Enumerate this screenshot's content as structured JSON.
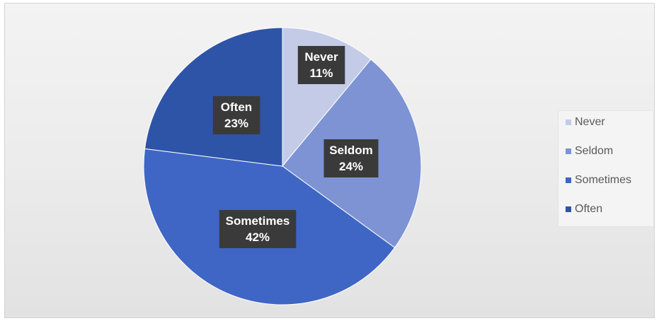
{
  "chart_data": {
    "type": "pie",
    "categories": [
      "Never",
      "Seldom",
      "Sometimes",
      "Often"
    ],
    "values": [
      11,
      24,
      42,
      23
    ],
    "labels": [
      "Never\n11%",
      "Seldom\n24%",
      "Sometimes\n42%",
      "Often\n23%"
    ],
    "colors": [
      "#c3cbe7",
      "#7d93d4",
      "#3f66c4",
      "#2e54a8"
    ],
    "legend": {
      "entries": [
        "Never",
        "Seldom",
        "Sometimes",
        "Often"
      ],
      "placement": "right"
    }
  }
}
